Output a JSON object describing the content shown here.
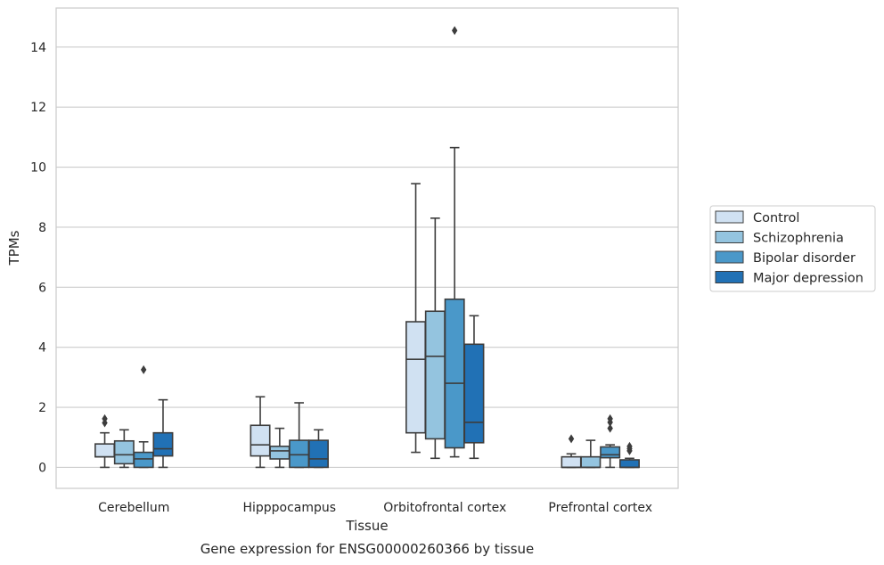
{
  "caption": "Gene expression for ENSG00000260366 by tissue",
  "chart_data": {
    "type": "boxplot",
    "xlabel": "Tissue",
    "ylabel": "TPMs",
    "ylim": [
      -0.7,
      15.3
    ],
    "yticks": [
      0,
      2,
      4,
      6,
      8,
      10,
      12,
      14
    ],
    "grid": "horizontal",
    "legend_position": "right",
    "categories": [
      "Cerebellum",
      "Hipppocampus",
      "Orbitofrontal cortex",
      "Prefrontal cortex"
    ],
    "series": [
      {
        "name": "Control",
        "color": "#d0e1f2",
        "boxes": [
          {
            "whislo": 0.0,
            "q1": 0.35,
            "med": 0.35,
            "q3": 0.78,
            "whishi": 1.15,
            "fliers": [
              1.48,
              1.62
            ]
          },
          {
            "whislo": 0.0,
            "q1": 0.38,
            "med": 0.75,
            "q3": 1.4,
            "whishi": 2.35,
            "fliers": []
          },
          {
            "whislo": 0.5,
            "q1": 1.15,
            "med": 3.6,
            "q3": 4.85,
            "whishi": 9.45,
            "fliers": []
          },
          {
            "whislo": 0.0,
            "q1": 0.0,
            "med": 0.0,
            "q3": 0.35,
            "whishi": 0.45,
            "fliers": [
              0.95
            ]
          }
        ]
      },
      {
        "name": "Schizophrenia",
        "color": "#94c4df",
        "boxes": [
          {
            "whislo": 0.0,
            "q1": 0.12,
            "med": 0.42,
            "q3": 0.88,
            "whishi": 1.25,
            "fliers": []
          },
          {
            "whislo": 0.0,
            "q1": 0.28,
            "med": 0.55,
            "q3": 0.7,
            "whishi": 1.3,
            "fliers": []
          },
          {
            "whislo": 0.3,
            "q1": 0.95,
            "med": 3.7,
            "q3": 5.2,
            "whishi": 8.3,
            "fliers": []
          },
          {
            "whislo": 0.0,
            "q1": 0.0,
            "med": 0.0,
            "q3": 0.35,
            "whishi": 0.9,
            "fliers": []
          }
        ]
      },
      {
        "name": "Bipolar disorder",
        "color": "#4a98c9",
        "boxes": [
          {
            "whislo": 0.0,
            "q1": 0.0,
            "med": 0.28,
            "q3": 0.5,
            "whishi": 0.85,
            "fliers": [
              3.25
            ]
          },
          {
            "whislo": 0.0,
            "q1": 0.0,
            "med": 0.42,
            "q3": 0.9,
            "whishi": 2.15,
            "fliers": []
          },
          {
            "whislo": 0.35,
            "q1": 0.65,
            "med": 2.8,
            "q3": 5.6,
            "whishi": 10.65,
            "fliers": [
              14.55
            ]
          },
          {
            "whislo": 0.0,
            "q1": 0.32,
            "med": 0.42,
            "q3": 0.68,
            "whishi": 0.75,
            "fliers": [
              1.3,
              1.5,
              1.62
            ]
          }
        ]
      },
      {
        "name": "Major depression",
        "color": "#2171b5",
        "boxes": [
          {
            "whislo": 0.0,
            "q1": 0.38,
            "med": 0.62,
            "q3": 1.15,
            "whishi": 2.25,
            "fliers": []
          },
          {
            "whislo": 0.0,
            "q1": 0.0,
            "med": 0.28,
            "q3": 0.9,
            "whishi": 1.25,
            "fliers": []
          },
          {
            "whislo": 0.3,
            "q1": 0.82,
            "med": 1.5,
            "q3": 4.1,
            "whishi": 5.05,
            "fliers": []
          },
          {
            "whislo": 0.0,
            "q1": 0.0,
            "med": 0.0,
            "q3": 0.25,
            "whishi": 0.3,
            "fliers": [
              0.55,
              0.62,
              0.7
            ]
          }
        ]
      }
    ]
  }
}
